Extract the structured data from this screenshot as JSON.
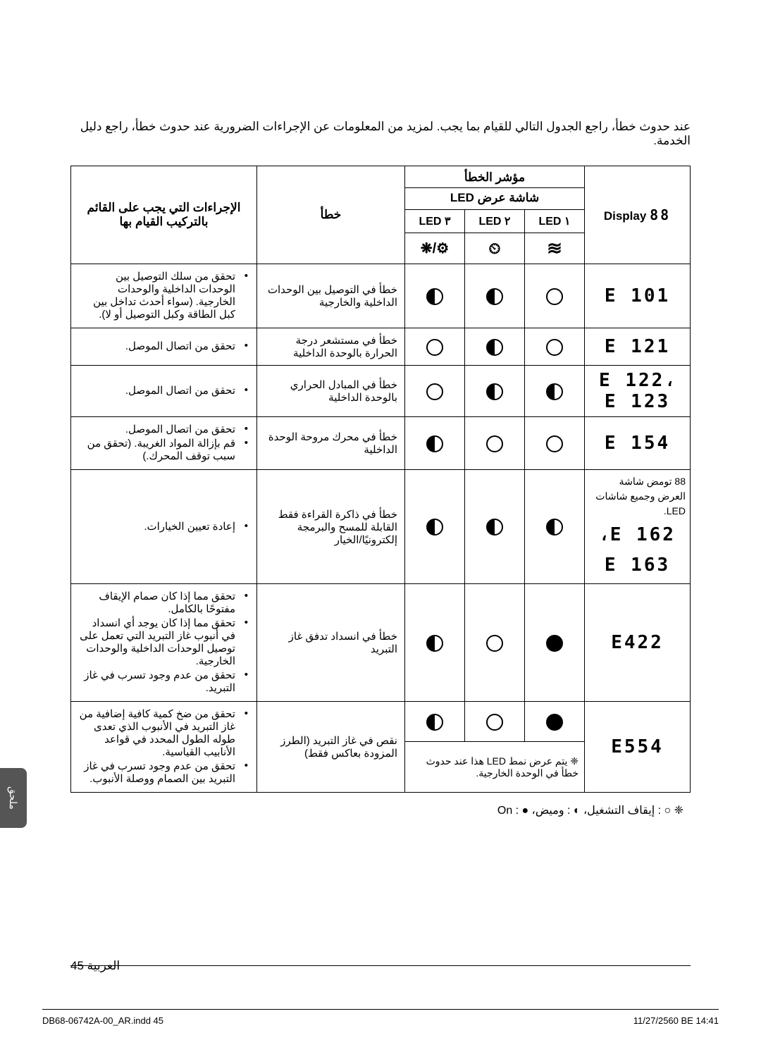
{
  "intro": "عند حدوث خطأ، راجع الجدول التالي للقيام بما يجب. لمزيد من المعلومات عن الإجراءات الضرورية عند حدوث خطأ، راجع دليل الخدمة.",
  "headers": {
    "indicator": "مؤشر الخطأ",
    "ledDisplay": "شاشة عرض LED",
    "display": "Display",
    "led1": "١ LED",
    "led2": "٢ LED",
    "led3": "٣ LED",
    "error": "خطأ",
    "actions": "الإجراءات التي يجب على القائم بالتركيب القيام بها"
  },
  "iconHeaders": {
    "wave": "≋",
    "timer": "⏲",
    "fan": "⚙/❋"
  },
  "rows": [
    {
      "display": "E 101",
      "led1": "empty",
      "led2": "half",
      "led3": "half",
      "error": "خطأ في التوصيل بين الوحدات الداخلية والخارجية",
      "actions": [
        "تحقق من سلك التوصيل بين الوحدات الداخلية والوحدات الخارجية. (سواء أحدث تداخل بين كبل الطاقة وكبل التوصيل أو لا)."
      ]
    },
    {
      "display": "E 121",
      "led1": "empty",
      "led2": "half",
      "led3": "empty",
      "error": "خطأ في مستشعر درجة الحرارة بالوحدة الداخلية",
      "actions": [
        "تحقق من اتصال الموصل."
      ]
    },
    {
      "display": "E 122،\nE 123",
      "led1": "half",
      "led2": "half",
      "led3": "empty",
      "error": "خطأ في المبادل الحراري بالوحدة الداخلية",
      "actions": [
        "تحقق من اتصال الموصل."
      ]
    },
    {
      "display": "E 154",
      "led1": "empty",
      "led2": "empty",
      "led3": "half",
      "error": "خطأ في محرك مروحة الوحدة الداخلية",
      "actions": [
        "تحقق من اتصال الموصل.",
        "قم بإزالة المواد الغريبة. (تحقق من سبب توقف المحرك.)"
      ]
    },
    {
      "displayMulti": {
        "text": "88 تومض شاشة العرض وجميع شاشات LED.",
        "codes": [
          "E 162،",
          "E 163"
        ]
      },
      "led1": "half",
      "led2": "half",
      "led3": "half",
      "error": "خطأ في ذاكرة القراءة فقط القابلة للمسح والبرمجة إلكترونيًا/الخيار",
      "actions": [
        "إعادة تعيين الخيارات."
      ]
    },
    {
      "display": "E422",
      "led1": "full",
      "led2": "empty",
      "led3": "half",
      "error": "خطأ في انسداد تدفق غاز التبريد",
      "actions": [
        "تحقق مما إذا كان صمام الإيقاف مفتوحًا بالكامل.",
        "تحقق مما إذا كان يوجد أي انسداد في أنبوب غاز التبريد التي تعمل على توصيل الوحدات الداخلية والوحدات الخارجية.",
        "تحقق من عدم وجود تسرب في غاز التبريد."
      ]
    },
    {
      "display": "E554",
      "led1": "full",
      "led2": "empty",
      "led3": "half",
      "error": "نقص في غاز التبريد (الطرز المزودة بعاكس فقط)",
      "actions": [
        "تحقق من ضخ كمية كافية إضافية من غاز التبريد في الأنبوب الذي تعدى طوله الطول المحدد في قواعد الأنابيب القياسية.",
        "تحقق من عدم وجود تسرب في غاز التبريد بين الصمام ووصلة الأنبوب."
      ],
      "ledNote": "❈  يتم عرض نمط LED هذا عند حدوث خطأ في الوحدة الخارجية."
    }
  ],
  "legend": "❈  ○ : إيقاف التشغيل، ◐ : وميض، ● : On",
  "pageLabel": "العربية  45",
  "sideTab": "ملحق",
  "bottomLeft": "DB68-06742A-00_AR.indd   45",
  "bottomRight": "11/27/2560 BE   14:41",
  "segDisplay88": "88"
}
